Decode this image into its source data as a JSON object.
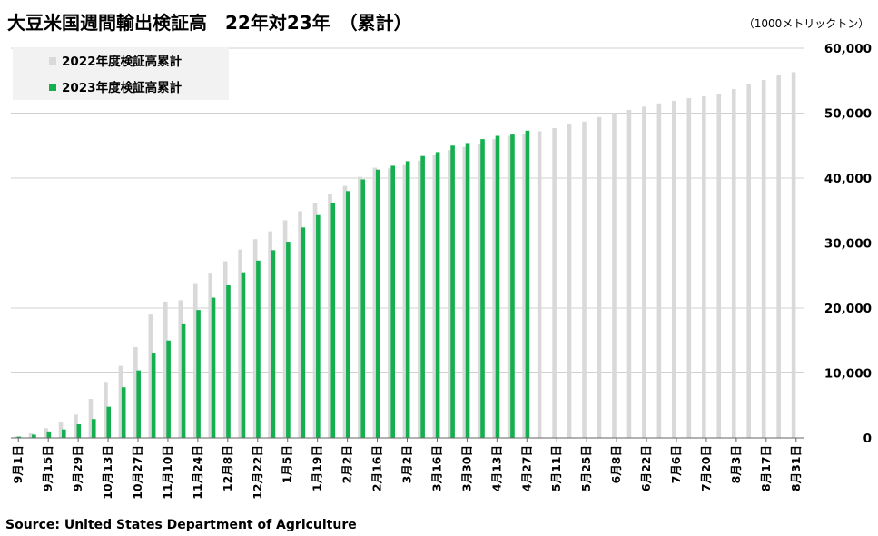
{
  "chart_data": {
    "type": "bar",
    "title": "大豆米国週間輸出検証高　22年対23年　（累計）",
    "unit_label": "（1000メトリックトン）",
    "source": "Source: United States Department of Agriculture",
    "ylim": [
      0,
      60000
    ],
    "yticks": [
      "0",
      "10,000",
      "20,000",
      "30,000",
      "40,000",
      "50,000",
      "60,000"
    ],
    "grid": true,
    "legend_position": "top-left",
    "x_tick_labels": [
      "9月1日",
      "9月15日",
      "9月29日",
      "10月13日",
      "10月27日",
      "11月10日",
      "11月24日",
      "12月8日",
      "12月22日",
      "1月5日",
      "1月19日",
      "2月2日",
      "2月16日",
      "3月2日",
      "3月16日",
      "3月30日",
      "4月13日",
      "4月27日",
      "5月11日",
      "5月25日",
      "6月8日",
      "6月22日",
      "7月6日",
      "7月20日",
      "8月3日",
      "8月17日",
      "8月31日"
    ],
    "series": [
      {
        "name": "2022年度検証高累計",
        "color": "#d9d9d9",
        "values": [
          200,
          700,
          1500,
          2500,
          3600,
          6000,
          8500,
          11100,
          14000,
          19000,
          21000,
          21200,
          23700,
          25300,
          27200,
          29000,
          30600,
          31800,
          33500,
          34900,
          36200,
          37600,
          38800,
          40200,
          41600,
          41500,
          42000,
          42700,
          43500,
          44300,
          44800,
          45200,
          46000,
          46500,
          46800,
          47200,
          47700,
          48300,
          48700,
          49400,
          50000,
          50500,
          51000,
          51500,
          51900,
          52300,
          52600,
          53000,
          53700,
          54400,
          55100,
          55800,
          56300
        ]
      },
      {
        "name": "2023年度検証高累計",
        "color": "#14b050",
        "values": [
          200,
          500,
          1000,
          1300,
          2100,
          2900,
          4800,
          7800,
          10400,
          13000,
          15000,
          17500,
          19700,
          21600,
          23500,
          25500,
          27300,
          28900,
          30200,
          32400,
          34300,
          36100,
          38000,
          39800,
          41300,
          41900,
          42600,
          43400,
          44000,
          45000,
          45400,
          46000,
          46500,
          46700,
          47300
        ]
      }
    ]
  }
}
